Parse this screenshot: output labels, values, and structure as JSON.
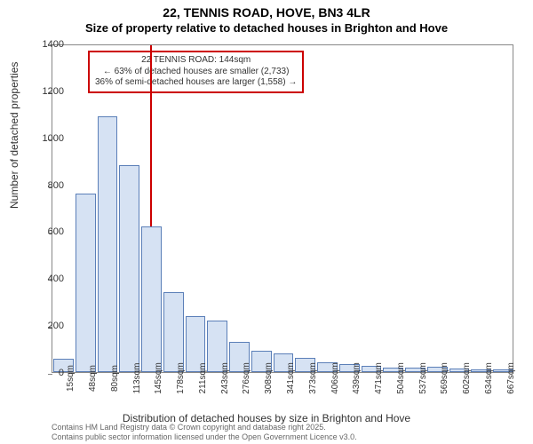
{
  "header": {
    "title": "22, TENNIS ROAD, HOVE, BN3 4LR",
    "subtitle": "Size of property relative to detached houses in Brighton and Hove"
  },
  "chart": {
    "type": "histogram",
    "background_color": "#ffffff",
    "bar_fill": "#d6e2f3",
    "bar_border": "#5b7fb8",
    "axis_color": "#888888",
    "text_color": "#333333",
    "marker_color": "#cc0000",
    "ylim": [
      0,
      1400
    ],
    "yticks": [
      0,
      200,
      400,
      600,
      800,
      1000,
      1200,
      1400
    ],
    "ylabel": "Number of detached properties",
    "xlabel": "Distribution of detached houses by size in Brighton and Hove",
    "marker_x": 144,
    "categories": [
      "15sqm",
      "48sqm",
      "80sqm",
      "113sqm",
      "145sqm",
      "178sqm",
      "211sqm",
      "243sqm",
      "276sqm",
      "308sqm",
      "341sqm",
      "373sqm",
      "406sqm",
      "439sqm",
      "471sqm",
      "504sqm",
      "537sqm",
      "569sqm",
      "602sqm",
      "634sqm",
      "667sqm"
    ],
    "values": [
      55,
      760,
      1090,
      880,
      620,
      340,
      240,
      220,
      130,
      90,
      80,
      60,
      40,
      35,
      25,
      18,
      20,
      24,
      14,
      12,
      10
    ],
    "annotation": {
      "line1": "22 TENNIS ROAD: 144sqm",
      "line2": "← 63% of detached houses are smaller (2,733)",
      "line3": "36% of semi-detached houses are larger (1,558) →"
    }
  },
  "footer": {
    "line1": "Contains HM Land Registry data © Crown copyright and database right 2025.",
    "line2": "Contains public sector information licensed under the Open Government Licence v3.0."
  }
}
